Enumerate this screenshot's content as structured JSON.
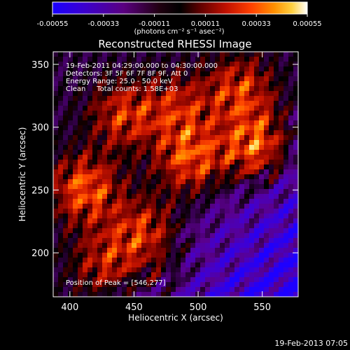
{
  "colorbar": {
    "ticks": [
      "-0.00055",
      "-0.00033",
      "-0.00011",
      "0.00011",
      "0.00033",
      "0.00055"
    ],
    "min": -0.00055,
    "max": 0.00055,
    "unit_label": "(photons cm⁻² s⁻¹ asec⁻²)"
  },
  "chart_data": {
    "type": "heatmap",
    "title": "Reconstructed RHESSI Image",
    "xlabel": "Heliocentric X (arcsec)",
    "ylabel": "Heliocentric Y (arcsec)",
    "xlim": [
      387,
      578
    ],
    "ylim": [
      165,
      360
    ],
    "x_ticks": [
      400,
      450,
      500,
      550
    ],
    "y_ticks": [
      200,
      250,
      300,
      350
    ],
    "colormap": "RHESSI red-temperature",
    "annotations": [
      "19-Feb-2011 04:29:00.000 to 04:30:00.000",
      "Detectors: 3F 5F 6F 7F 8F 9F, Att 0",
      "Energy Range: 25.0 - 50.0 keV",
      "Clean     Total counts: 1.58E+03"
    ],
    "peak_label": "Position of Peak = [546,277]"
  },
  "footer": {
    "timestamp": "19-Feb-2013 07:05"
  }
}
